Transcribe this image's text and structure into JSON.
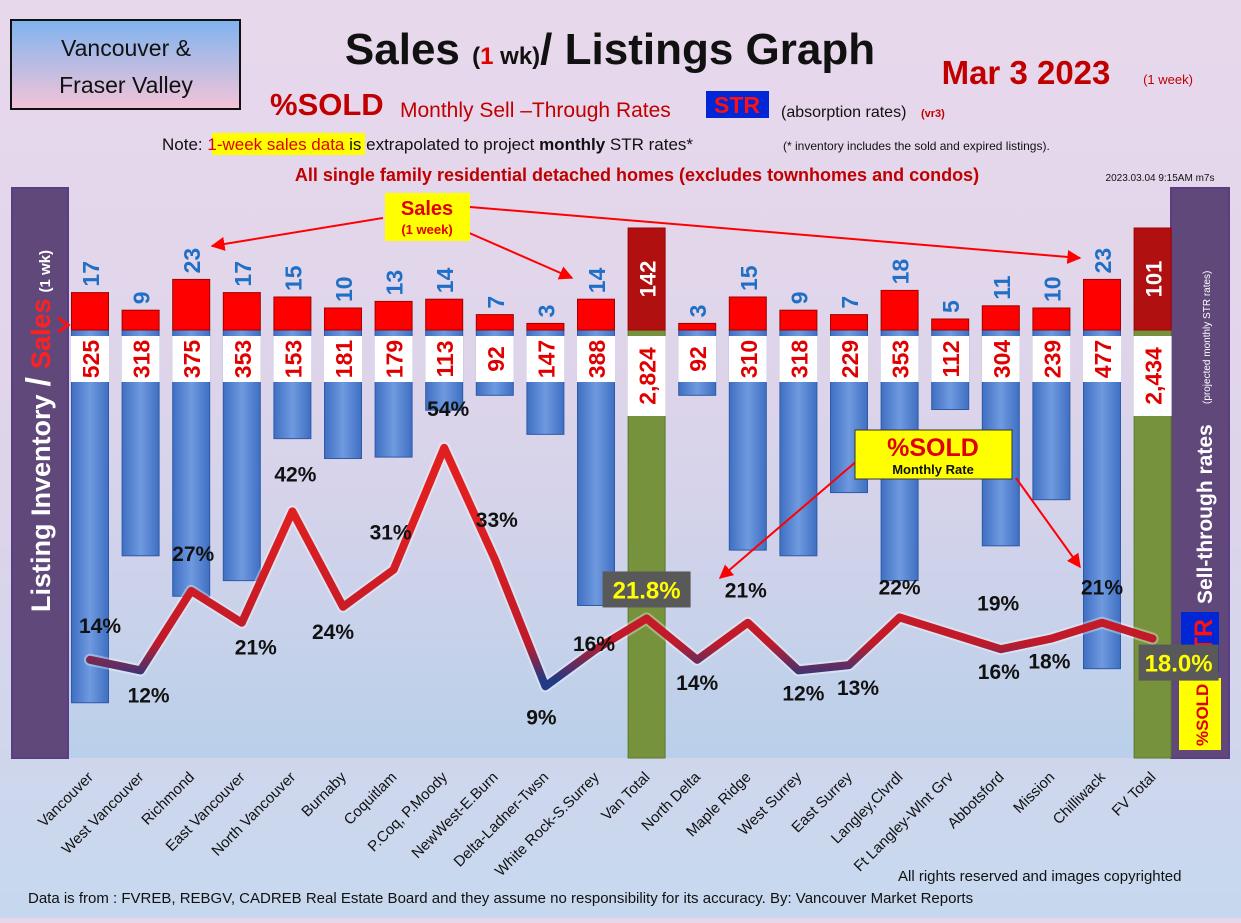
{
  "header": {
    "region_line1": "Vancouver &",
    "region_line2": "Fraser Valley",
    "title_a": "Sales ",
    "title_paren_open": "(",
    "title_one": "1",
    "title_wk": " wk)",
    "title_b": "/ Listings Graph",
    "date": "Mar 3  2023",
    "date_note": "(1 week)",
    "sold_big": "%SOLD",
    "sold_rates_text": "Monthly Sell –Through Rates",
    "str_badge": "STR",
    "absorption": "(absorption rates)",
    "version": "(vr3)",
    "note_prefix": "Note: ",
    "note_highlight": "1-week sales data",
    "note_mid": " is extrapolated to project ",
    "note_bold": "monthly",
    "note_tail": " STR rates*",
    "note_small": "(* inventory includes the sold and expired listings).",
    "subtitle": "All single family residential detached homes (excludes townhomes and condos)",
    "timestamp": "2023.03.04 9:15AM m7s"
  },
  "left_axis": {
    "part1": "Listing Inventory",
    "slash": "/",
    "part2": "Sales",
    "unit": "(1 wk)"
  },
  "right_axis": {
    "sold": "%SOLD",
    "str": "STR",
    "label": "Sell-through rates",
    "small": "(projected monthly STR rates)"
  },
  "callouts": {
    "sales_title": "Sales",
    "sales_sub": "(1 week)",
    "sold_title": "%SOLD",
    "sold_sub": "Monthly Rate"
  },
  "footer": {
    "rights": "All rights reserved and  images copyrighted",
    "source": "Data is from : FVREB, REBGV, CADREB Real Estate Board and they assume no responsibility for its accuracy. By: Vancouver Market Reports"
  },
  "colors": {
    "inventory_bar": "#4d7fd1",
    "total_bar": "#76923c",
    "sales_bar": "#ff0000",
    "total_sales_bar": "#b01010",
    "sales_label": "#1f6fc6",
    "inventory_label": "#e00000",
    "line_high": "#e02020",
    "line_low": "#263a80",
    "axis_panel": "#60497a"
  },
  "chart_data": {
    "type": "bar",
    "categories": [
      "Vancouver",
      "West Vancouver",
      "Richmond",
      "East Vancouver",
      "North Vancouver",
      "Burnaby",
      "Coquitlam",
      "P.Coq, P.Moody",
      "NewWest-E.Burn",
      "Delta-Ladner-Twsn",
      "White Rock-S.Surrey",
      "Van Total",
      "North Delta",
      "Maple Ridge",
      "West Surrey",
      "East Surrey",
      "Langley,Clvrdl",
      "Ft Langley-Wlnt Grv",
      "Abbotsford",
      "Mission",
      "Chilliwack",
      "FV Total"
    ],
    "series": [
      {
        "name": "Sales",
        "values": [
          17,
          9,
          23,
          17,
          15,
          10,
          13,
          14,
          7,
          3,
          14,
          142,
          3,
          15,
          9,
          7,
          18,
          5,
          11,
          10,
          23,
          101
        ]
      },
      {
        "name": "Listing Inventory",
        "values": [
          525,
          318,
          375,
          353,
          153,
          181,
          179,
          113,
          92,
          147,
          388,
          2824,
          92,
          310,
          318,
          229,
          353,
          112,
          304,
          239,
          477,
          2434
        ]
      },
      {
        "name": "%SOLD",
        "values": [
          14,
          12,
          27,
          21,
          42,
          24,
          31,
          54,
          33,
          9,
          16,
          21.8,
          14,
          21,
          12,
          13,
          22,
          19,
          16,
          18,
          21,
          18.0
        ]
      }
    ],
    "value_labels": {
      "sales": [
        "17",
        "9",
        "23",
        "17",
        "15",
        "10",
        "13",
        "14",
        "7",
        "3",
        "14",
        "142",
        "3",
        "15",
        "9",
        "7",
        "18",
        "5",
        "11",
        "10",
        "23",
        "101"
      ],
      "inventory": [
        "525",
        "318",
        "375",
        "353",
        "153",
        "181",
        "179",
        "113",
        "92",
        "147",
        "388",
        "2,824",
        "92",
        "310",
        "318",
        "229",
        "353",
        "112",
        "304",
        "239",
        "477",
        "2,434"
      ],
      "sold": [
        "14%",
        "12%",
        "27%",
        "21%",
        "42%",
        "24%",
        "31%",
        "54%",
        "33%",
        "9%",
        "16%",
        "21.8%",
        "14%",
        "21%",
        "12%",
        "13%",
        "22%",
        "19%",
        "16%",
        "18%",
        "21%",
        "18.0%"
      ]
    },
    "total_categories": [
      "Van Total",
      "FV Total"
    ],
    "legend": "none",
    "grid": false
  }
}
